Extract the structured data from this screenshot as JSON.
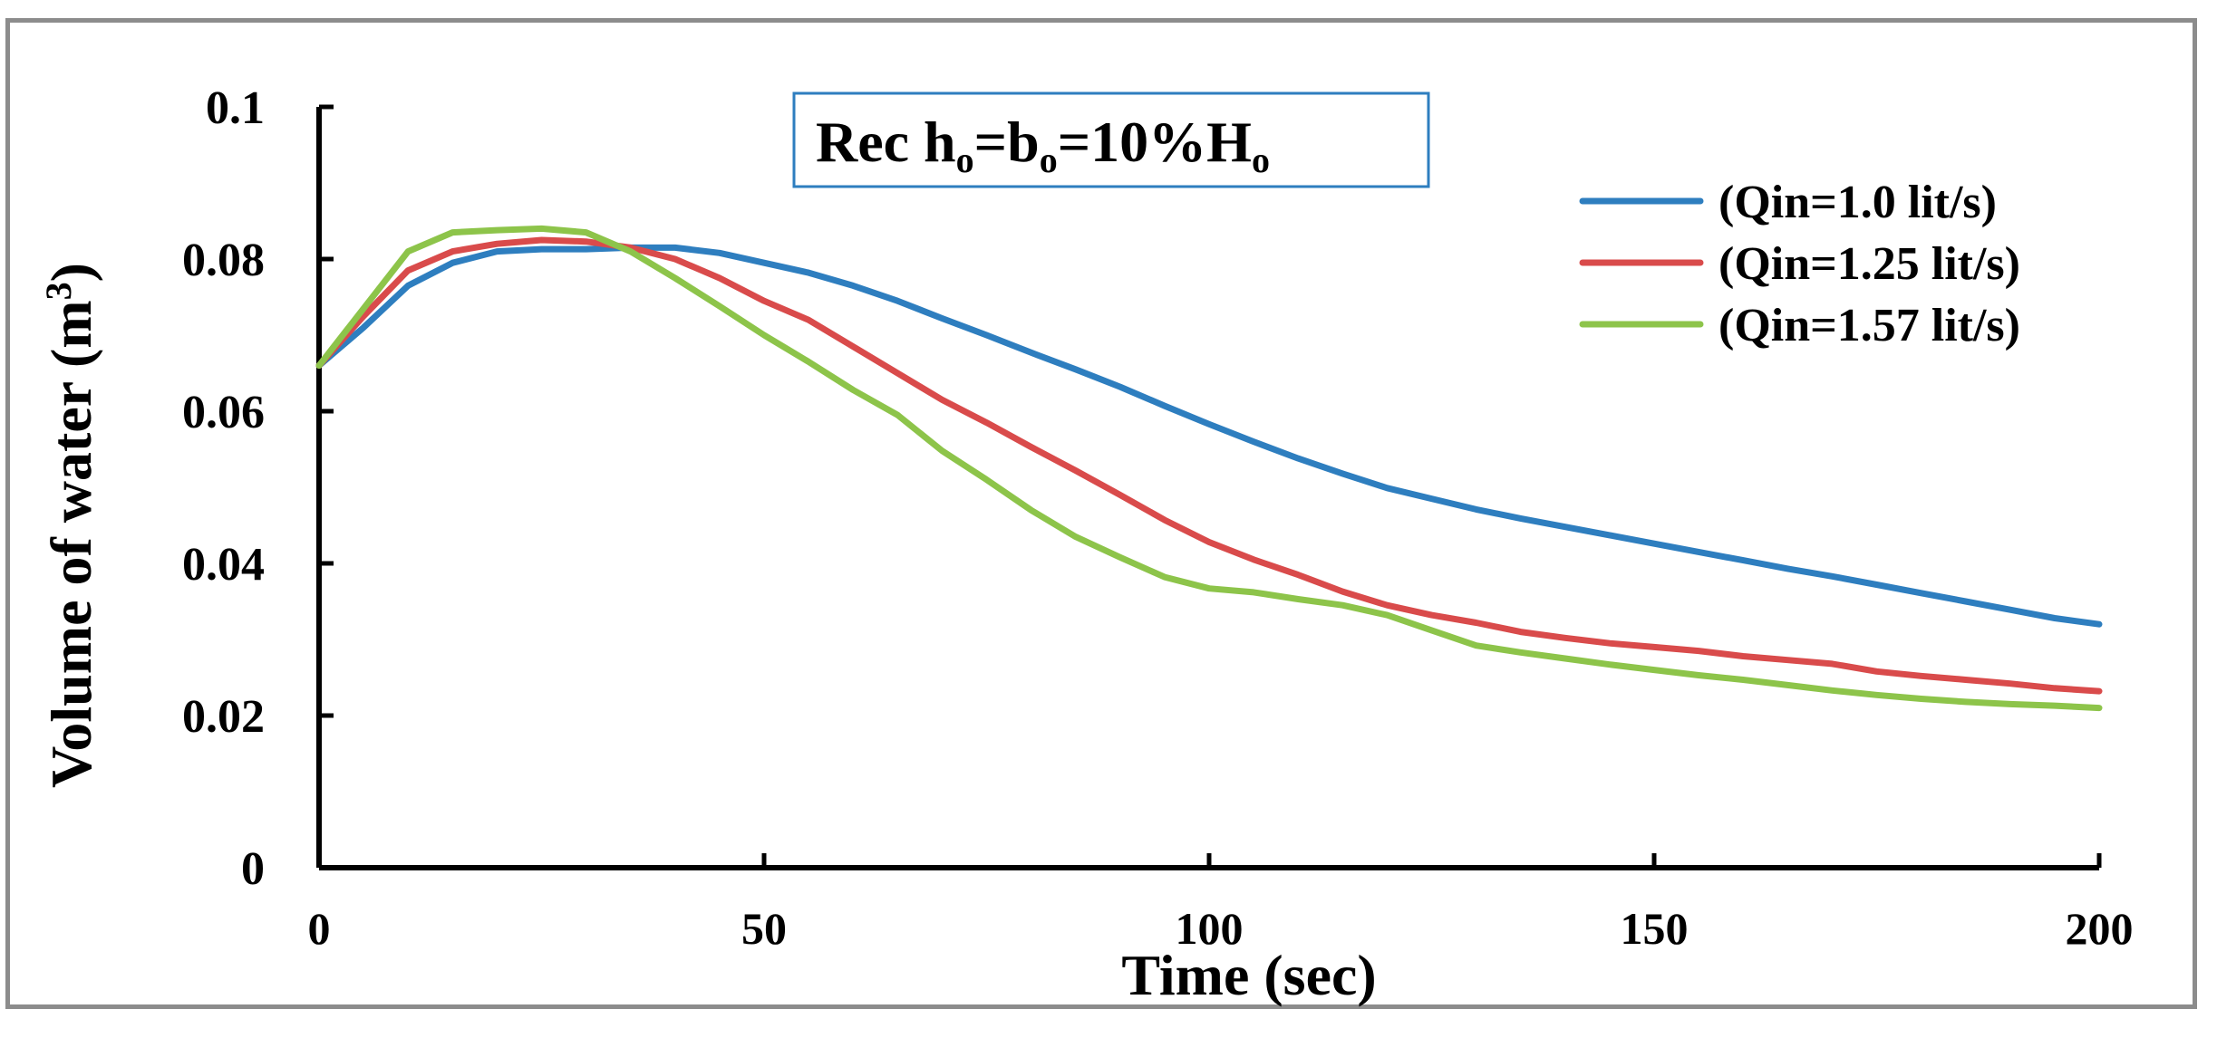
{
  "chart_data": {
    "type": "line",
    "title": {
      "main": "Rec h",
      "sub1": "o",
      "mid1": "=b",
      "sub2": "o",
      "mid2": "=10%H",
      "sub3": "o"
    },
    "xlabel": "Time (sec)",
    "ylabel": {
      "main": "Volume of water (m",
      "sup": "3",
      "close": ")"
    },
    "xlim": [
      0,
      200
    ],
    "ylim": [
      0,
      0.1
    ],
    "xticks": [
      0,
      50,
      100,
      150,
      200
    ],
    "xtick_labels": [
      "0",
      "50",
      "100",
      "150",
      "200"
    ],
    "yticks": [
      0,
      0.02,
      0.04,
      0.06,
      0.08,
      0.1
    ],
    "ytick_labels": [
      "0",
      "0.02",
      "0.04",
      "0.06",
      "0.08",
      "0.1"
    ],
    "grid": false,
    "legend_position": "top-right",
    "series": [
      {
        "name": "(Qin=1.0 lit/s)",
        "color": "#2e7ebf",
        "x": [
          0,
          5,
          10,
          15,
          20,
          25,
          30,
          35,
          40,
          45,
          50,
          55,
          60,
          65,
          70,
          75,
          80,
          85,
          90,
          95,
          100,
          105,
          110,
          115,
          120,
          125,
          130,
          135,
          140,
          145,
          150,
          155,
          160,
          165,
          170,
          175,
          180,
          185,
          190,
          195,
          200
        ],
        "y": [
          0.066,
          0.071,
          0.0765,
          0.0795,
          0.081,
          0.0813,
          0.0813,
          0.0815,
          0.0815,
          0.0808,
          0.0795,
          0.0782,
          0.0765,
          0.0745,
          0.0722,
          0.07,
          0.0677,
          0.0655,
          0.0632,
          0.0607,
          0.0583,
          0.056,
          0.0538,
          0.0518,
          0.0499,
          0.0485,
          0.0471,
          0.0459,
          0.0448,
          0.0437,
          0.0426,
          0.0415,
          0.0404,
          0.0393,
          0.0383,
          0.0372,
          0.0361,
          0.035,
          0.0339,
          0.0328,
          0.032
        ]
      },
      {
        "name": "(Qin=1.25 lit/s)",
        "color": "#d94b4b",
        "x": [
          0,
          5,
          10,
          15,
          20,
          25,
          30,
          35,
          40,
          45,
          50,
          55,
          60,
          65,
          70,
          75,
          80,
          85,
          90,
          95,
          100,
          105,
          110,
          115,
          120,
          125,
          130,
          135,
          140,
          145,
          150,
          155,
          160,
          165,
          170,
          175,
          180,
          185,
          190,
          195,
          200
        ],
        "y": [
          0.066,
          0.0725,
          0.0785,
          0.081,
          0.082,
          0.0825,
          0.0823,
          0.0815,
          0.08,
          0.0775,
          0.0745,
          0.072,
          0.0685,
          0.065,
          0.0615,
          0.0585,
          0.0553,
          0.0522,
          0.049,
          0.0457,
          0.0428,
          0.0405,
          0.0385,
          0.0363,
          0.0345,
          0.0332,
          0.0322,
          0.031,
          0.0302,
          0.0295,
          0.029,
          0.0285,
          0.0278,
          0.0273,
          0.0268,
          0.0258,
          0.0252,
          0.0247,
          0.0242,
          0.0236,
          0.0232
        ]
      },
      {
        "name": "(Qin=1.57 lit/s)",
        "color": "#8dc44a",
        "x": [
          0,
          5,
          10,
          15,
          20,
          25,
          30,
          35,
          40,
          45,
          50,
          55,
          60,
          65,
          70,
          75,
          80,
          85,
          90,
          95,
          100,
          105,
          110,
          115,
          120,
          125,
          130,
          135,
          140,
          145,
          150,
          155,
          160,
          165,
          170,
          175,
          180,
          185,
          190,
          195,
          200
        ],
        "y": [
          0.066,
          0.0735,
          0.081,
          0.0835,
          0.0838,
          0.084,
          0.0835,
          0.081,
          0.0775,
          0.0738,
          0.07,
          0.0665,
          0.0628,
          0.0595,
          0.0548,
          0.051,
          0.047,
          0.0435,
          0.0408,
          0.0382,
          0.0367,
          0.0362,
          0.0353,
          0.0345,
          0.0332,
          0.0312,
          0.0292,
          0.0283,
          0.0275,
          0.0267,
          0.026,
          0.0253,
          0.0247,
          0.024,
          0.0233,
          0.0227,
          0.0222,
          0.0218,
          0.0215,
          0.0213,
          0.021
        ]
      }
    ]
  }
}
